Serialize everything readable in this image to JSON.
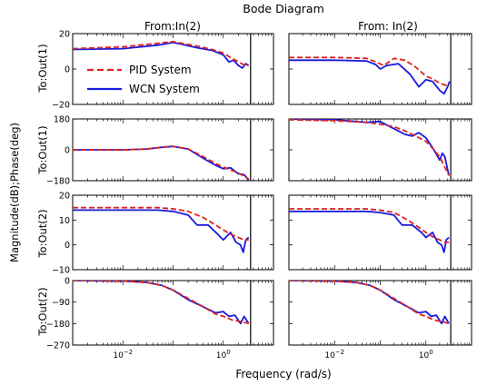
{
  "chart_data": {
    "type": "line",
    "title": "Bode Diagram",
    "xlabel": "Frequency (rad/s)",
    "ylabel": "Magnitude(dB);Phase(deg)",
    "x_scale": "log",
    "xlim": [
      0.001,
      10
    ],
    "vline_x": 3.5,
    "column_titles": [
      "From:In(2)",
      "From: In(2)"
    ],
    "row_labels": [
      "To:Out(1)",
      "To:Out(1)",
      "To:Out(2)",
      "To:Out(2)"
    ],
    "x_ticks": [
      {
        "value": 0.01,
        "label": "10^-2"
      },
      {
        "value": 1,
        "label": "10^0"
      }
    ],
    "legend": {
      "placement": "upper-left of top-left panel",
      "entries": [
        {
          "name": "PID System",
          "color": "#e02020",
          "style": "dashed"
        },
        {
          "name": "WCN System",
          "color": "#1a1adc",
          "style": "solid"
        }
      ]
    },
    "panels": [
      {
        "row": 0,
        "col": 0,
        "ylim": [
          -20,
          20
        ],
        "y_ticks": [
          {
            "value": 20,
            "label": "20"
          },
          {
            "value": 0,
            "label": "0"
          },
          {
            "value": -20,
            "label": "−20"
          }
        ],
        "series": [
          {
            "name": "PID System",
            "x": [
              0.001,
              0.01,
              0.05,
              0.1,
              0.15,
              0.3,
              0.6,
              1,
              1.5,
              2,
              2.5,
              3.2
            ],
            "y": [
              11.5,
              12.5,
              14.5,
              15.5,
              14.5,
              13,
              11,
              9,
              6,
              4,
              2.5,
              2
            ]
          },
          {
            "name": "WCN System",
            "x": [
              0.001,
              0.01,
              0.05,
              0.1,
              0.15,
              0.3,
              0.6,
              1,
              1.3,
              1.6,
              2,
              2.4,
              2.8,
              3.2
            ],
            "y": [
              11,
              11.5,
              13.5,
              15,
              14,
              12,
              10.5,
              8,
              4,
              5,
              2,
              0.5,
              3,
              2
            ]
          }
        ]
      },
      {
        "row": 0,
        "col": 1,
        "ylim": [
          -20,
          20
        ],
        "y_ticks": [],
        "series": [
          {
            "name": "PID System",
            "x": [
              0.001,
              0.01,
              0.05,
              0.08,
              0.12,
              0.2,
              0.35,
              0.6,
              1,
              1.5,
              2,
              2.6,
              3.2
            ],
            "y": [
              6.5,
              6.5,
              6,
              4,
              2,
              6,
              5,
              1,
              -4,
              -6,
              -8,
              -9,
              -10
            ]
          },
          {
            "name": "WCN System",
            "x": [
              0.001,
              0.01,
              0.05,
              0.08,
              0.1,
              0.14,
              0.25,
              0.45,
              0.7,
              1,
              1.4,
              2,
              2.5,
              3,
              3.3
            ],
            "y": [
              5,
              5,
              4.5,
              2.5,
              0,
              2,
              3,
              -3,
              -10,
              -6,
              -7,
              -12,
              -14,
              -10,
              -7
            ]
          }
        ]
      },
      {
        "row": 1,
        "col": 0,
        "ylim": [
          -180,
          180
        ],
        "y_ticks": [
          {
            "value": 180,
            "label": "180"
          },
          {
            "value": 0,
            "label": "0"
          },
          {
            "value": -180,
            "label": "−180"
          }
        ],
        "series": [
          {
            "name": "PID System",
            "x": [
              0.001,
              0.01,
              0.03,
              0.06,
              0.1,
              0.2,
              0.4,
              0.7,
              1,
              2,
              3.2
            ],
            "y": [
              0,
              0,
              5,
              15,
              20,
              5,
              -40,
              -80,
              -100,
              -135,
              -170
            ]
          },
          {
            "name": "WCN System",
            "x": [
              0.001,
              0.01,
              0.03,
              0.06,
              0.1,
              0.2,
              0.4,
              0.7,
              1,
              1.4,
              2,
              2.6,
              3.2
            ],
            "y": [
              0,
              0,
              5,
              15,
              20,
              5,
              -50,
              -90,
              -110,
              -105,
              -140,
              -145,
              -175
            ]
          }
        ]
      },
      {
        "row": 1,
        "col": 1,
        "ylim": [
          -180,
          180
        ],
        "y_ticks": [],
        "series": [
          {
            "name": "PID System",
            "x": [
              0.001,
              0.01,
              0.05,
              0.1,
              0.2,
              0.35,
              0.6,
              1,
              1.5,
              2,
              3.2
            ],
            "y": [
              175,
              170,
              160,
              150,
              135,
              110,
              80,
              50,
              0,
              -40,
              -150
            ]
          },
          {
            "name": "WCN System",
            "x": [
              0.001,
              0.01,
              0.05,
              0.1,
              0.15,
              0.25,
              0.35,
              0.5,
              0.7,
              1,
              1.5,
              2,
              2.3,
              2.6,
              3.2
            ],
            "y": [
              180,
              175,
              160,
              165,
              140,
              110,
              90,
              80,
              100,
              70,
              0,
              -60,
              -20,
              -40,
              -150
            ]
          }
        ]
      },
      {
        "row": 2,
        "col": 0,
        "ylim": [
          -10,
          20
        ],
        "y_ticks": [
          {
            "value": 20,
            "label": "20"
          },
          {
            "value": 10,
            "label": "10"
          },
          {
            "value": 0,
            "label": "0"
          },
          {
            "value": -10,
            "label": "−10"
          }
        ],
        "series": [
          {
            "name": "PID System",
            "x": [
              0.001,
              0.01,
              0.05,
              0.1,
              0.2,
              0.4,
              0.7,
              1,
              1.5,
              2,
              2.6,
              3.2
            ],
            "y": [
              15,
              15,
              15,
              14.5,
              13.5,
              11,
              8,
              6,
              4,
              3,
              2,
              2
            ]
          },
          {
            "name": "WCN System",
            "x": [
              0.001,
              0.01,
              0.05,
              0.1,
              0.2,
              0.3,
              0.5,
              0.8,
              1,
              1.4,
              1.8,
              2.2,
              2.5,
              2.8,
              3.2
            ],
            "y": [
              14,
              14,
              14,
              13.5,
              12,
              8,
              8,
              4,
              2,
              5,
              1,
              0,
              -3,
              2,
              3
            ]
          }
        ]
      },
      {
        "row": 2,
        "col": 1,
        "ylim": [
          -10,
          20
        ],
        "y_ticks": [],
        "series": [
          {
            "name": "PID System",
            "x": [
              0.001,
              0.01,
              0.05,
              0.1,
              0.2,
              0.4,
              0.7,
              1,
              1.5,
              2,
              2.6,
              3.2
            ],
            "y": [
              14.5,
              14.5,
              14.5,
              14,
              13,
              10,
              7,
              5,
              3,
              2,
              1,
              1
            ]
          },
          {
            "name": "WCN System",
            "x": [
              0.001,
              0.01,
              0.05,
              0.1,
              0.2,
              0.3,
              0.5,
              0.8,
              1,
              1.4,
              1.8,
              2.2,
              2.5,
              2.8,
              3.2
            ],
            "y": [
              13.5,
              13.5,
              13.5,
              13,
              12,
              8,
              8,
              5,
              3,
              5,
              1,
              0,
              -3,
              2,
              3
            ]
          }
        ]
      },
      {
        "row": 3,
        "col": 0,
        "ylim": [
          -270,
          0
        ],
        "y_ticks": [
          {
            "value": 0,
            "label": "0"
          },
          {
            "value": -90,
            "label": "−90"
          },
          {
            "value": -180,
            "label": "−180"
          },
          {
            "value": -270,
            "label": "−270"
          }
        ],
        "series": [
          {
            "name": "PID System",
            "x": [
              0.001,
              0.01,
              0.03,
              0.06,
              0.1,
              0.2,
              0.4,
              0.7,
              1,
              1.5,
              2,
              2.6,
              3.2
            ],
            "y": [
              0,
              -2,
              -8,
              -20,
              -40,
              -75,
              -110,
              -140,
              -150,
              -165,
              -170,
              -175,
              -180
            ]
          },
          {
            "name": "WCN System",
            "x": [
              0.001,
              0.01,
              0.03,
              0.06,
              0.1,
              0.2,
              0.4,
              0.7,
              1,
              1.3,
              1.7,
              2.2,
              2.6,
              3.2
            ],
            "y": [
              0,
              -2,
              -8,
              -20,
              -40,
              -80,
              -110,
              -135,
              -130,
              -150,
              -145,
              -180,
              -150,
              -180
            ]
          }
        ]
      },
      {
        "row": 3,
        "col": 1,
        "ylim": [
          -270,
          0
        ],
        "y_ticks": [],
        "series": [
          {
            "name": "PID System",
            "x": [
              0.001,
              0.01,
              0.03,
              0.06,
              0.1,
              0.2,
              0.4,
              0.7,
              1,
              1.5,
              2,
              2.6,
              3.2
            ],
            "y": [
              0,
              -2,
              -8,
              -20,
              -40,
              -75,
              -110,
              -140,
              -150,
              -165,
              -170,
              -175,
              -180
            ]
          },
          {
            "name": "WCN System",
            "x": [
              0.001,
              0.01,
              0.03,
              0.06,
              0.1,
              0.2,
              0.4,
              0.7,
              1,
              1.3,
              1.7,
              2.2,
              2.6,
              3.2
            ],
            "y": [
              0,
              -2,
              -8,
              -20,
              -40,
              -80,
              -110,
              -135,
              -130,
              -150,
              -145,
              -180,
              -150,
              -180
            ]
          }
        ]
      }
    ]
  }
}
